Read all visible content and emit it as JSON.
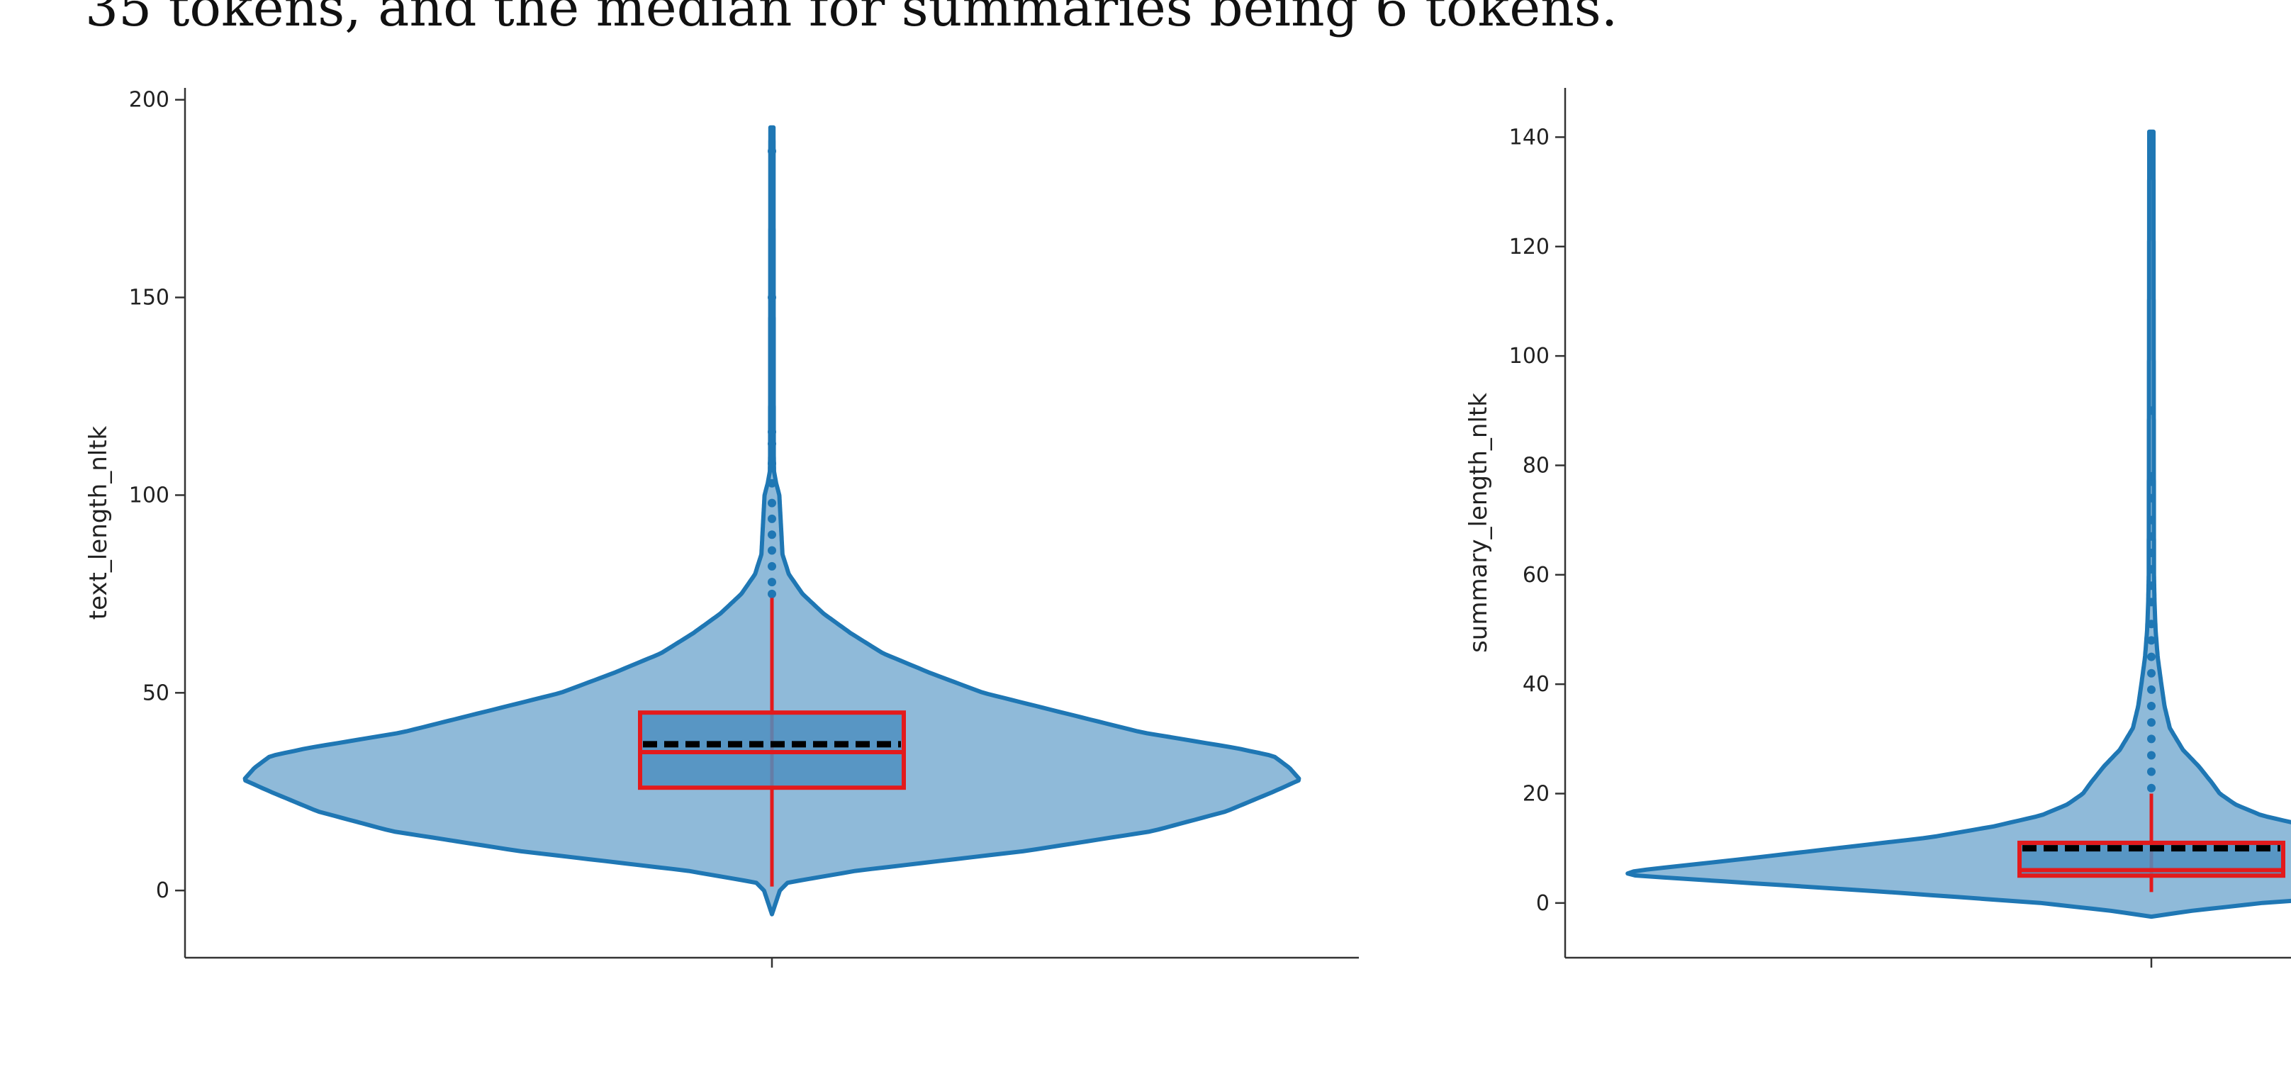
{
  "header": {
    "cropped_text": "35 tokens, and the median for summaries being 6 tokens."
  },
  "colors": {
    "violin_fill": "#8fbad9",
    "violin_edge": "#1f77b4",
    "box_edge": "#e31a1c",
    "mean_line": "#000000",
    "axis": "#333333"
  },
  "chart_data": [
    {
      "type": "violin",
      "ylabel": "text_length_nltk",
      "ylim": [
        -17,
        203
      ],
      "yticks": [
        0,
        50,
        100,
        150,
        200
      ],
      "ytick_labels": [
        "0",
        "50",
        "100",
        "150",
        "200"
      ],
      "box": {
        "q1": 26,
        "median": 35,
        "q3": 45,
        "mean": 37,
        "whisker_low": 1,
        "whisker_high": 74
      },
      "outliers": [
        75,
        78,
        82,
        86,
        90,
        94,
        98,
        103,
        108,
        113,
        116,
        150,
        187
      ],
      "kde_max_y": 193,
      "kde_min_y": -6,
      "density": [
        [
          -6,
          0.0
        ],
        [
          0,
          0.015
        ],
        [
          2,
          0.03
        ],
        [
          5,
          0.16
        ],
        [
          10,
          0.48
        ],
        [
          15,
          0.72
        ],
        [
          20,
          0.86
        ],
        [
          25,
          0.95
        ],
        [
          28,
          1.0
        ],
        [
          31,
          0.98
        ],
        [
          34,
          0.95
        ],
        [
          36,
          0.88
        ],
        [
          40,
          0.7
        ],
        [
          45,
          0.55
        ],
        [
          50,
          0.4
        ],
        [
          55,
          0.3
        ],
        [
          60,
          0.21
        ],
        [
          65,
          0.15
        ],
        [
          70,
          0.098
        ],
        [
          75,
          0.058
        ],
        [
          80,
          0.032
        ],
        [
          85,
          0.02
        ],
        [
          90,
          0.018
        ],
        [
          95,
          0.016
        ],
        [
          100,
          0.014
        ],
        [
          103,
          0.008
        ],
        [
          106,
          0.004
        ],
        [
          110,
          0.0035
        ],
        [
          193,
          0.003
        ]
      ]
    },
    {
      "type": "violin",
      "ylabel": "summary_length_nltk",
      "ylim": [
        -10,
        149
      ],
      "yticks": [
        0,
        20,
        40,
        60,
        80,
        100,
        120,
        140
      ],
      "ytick_labels": [
        "0",
        "20",
        "40",
        "60",
        "80",
        "100",
        "120",
        "140"
      ],
      "box": {
        "q1": 5,
        "median": 6,
        "q3": 11,
        "mean": 10,
        "whisker_low": 2,
        "whisker_high": 20
      },
      "outliers": [
        21,
        24,
        27,
        30,
        33,
        36,
        39,
        42,
        45,
        48,
        51,
        55,
        58,
        61,
        64,
        67,
        70,
        74,
        77,
        78,
        90,
        137
      ],
      "kde_max_y": 141,
      "kde_min_y": -2.5,
      "density": [
        [
          -2.5,
          0.0
        ],
        [
          -1.5,
          0.07
        ],
        [
          0,
          0.21
        ],
        [
          2,
          0.5
        ],
        [
          4,
          0.82
        ],
        [
          5,
          0.98
        ],
        [
          5.5,
          1.0
        ],
        [
          6,
          0.97
        ],
        [
          8,
          0.78
        ],
        [
          10,
          0.6
        ],
        [
          12,
          0.42
        ],
        [
          14,
          0.3
        ],
        [
          16,
          0.21
        ],
        [
          18,
          0.16
        ],
        [
          20,
          0.13
        ],
        [
          22,
          0.115
        ],
        [
          25,
          0.09
        ],
        [
          28,
          0.06
        ],
        [
          32,
          0.035
        ],
        [
          36,
          0.025
        ],
        [
          40,
          0.019
        ],
        [
          45,
          0.012
        ],
        [
          50,
          0.008
        ],
        [
          55,
          0.006
        ],
        [
          60,
          0.005
        ],
        [
          141,
          0.004
        ]
      ]
    }
  ]
}
